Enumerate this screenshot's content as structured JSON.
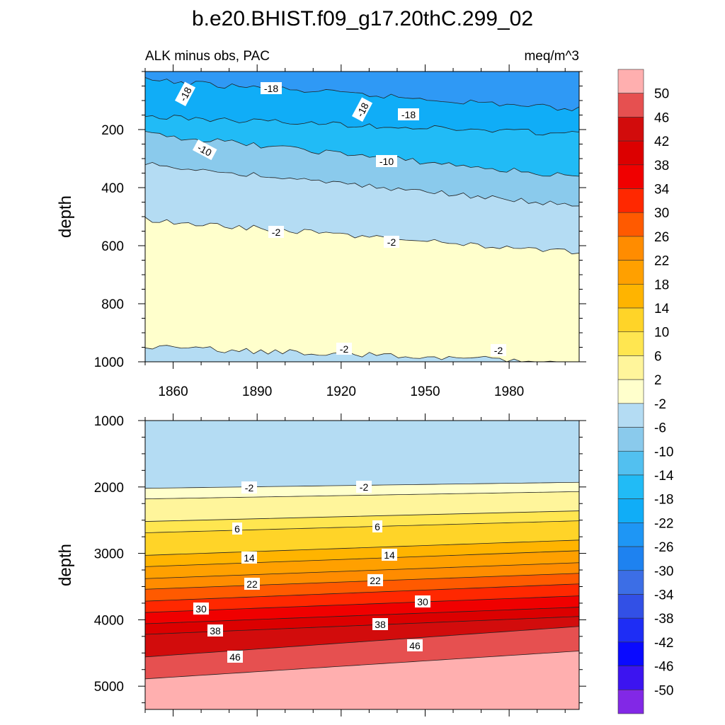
{
  "chart_data": [
    {
      "type": "contour",
      "title": "b.e20.BHIST.f09_g17.20thC.299_02",
      "subtitle_left": "ALK minus obs, PAC",
      "subtitle_right": "meq/m^3",
      "xlabel": "",
      "ylabel": "depth",
      "xlim": [
        1850,
        2005
      ],
      "ylim": [
        1000,
        0
      ],
      "x_ticks": [
        1860,
        1890,
        1920,
        1950,
        1980
      ],
      "y_ticks": [
        200,
        400,
        600,
        800,
        1000
      ],
      "contour_labels": [
        "-18",
        "-18",
        "-18",
        "-18",
        "-10",
        "-10",
        "-2",
        "-2",
        "-2",
        "-2"
      ],
      "zones": [
        {
          "level": "-22",
          "color": "#2f99f5",
          "depth_1850": 0,
          "depth_2005": 0
        },
        {
          "level": "-18",
          "color": "#10adf7",
          "depth_1850": 30,
          "depth_2005": 130
        },
        {
          "level": "-14",
          "color": "#21bbf6",
          "depth_1850": 155,
          "depth_2005": 215
        },
        {
          "level": "-10",
          "color": "#8acaec",
          "depth_1850": 215,
          "depth_2005": 365
        },
        {
          "level": "-6",
          "color": "#b4dcf3",
          "depth_1850": 320,
          "depth_2005": 465
        },
        {
          "level": "-2",
          "color": "#ffffcc",
          "depth_1850": 510,
          "depth_2005": 625
        },
        {
          "level": "-6",
          "color": "#b4dcf3",
          "depth_1850": 950,
          "depth_2005": 1001
        }
      ]
    },
    {
      "type": "contour",
      "title": "",
      "xlabel": "",
      "ylabel": "depth",
      "xlim": [
        1850,
        2005
      ],
      "ylim": [
        5350,
        1000
      ],
      "x_ticks": [
        1860,
        1890,
        1920,
        1950,
        1980
      ],
      "y_ticks": [
        1000,
        2000,
        3000,
        4000,
        5000
      ],
      "contour_labels": [
        "-2",
        "-2",
        "6",
        "6",
        "14",
        "14",
        "22",
        "22",
        "30",
        "30",
        "38",
        "38",
        "46",
        "46"
      ],
      "zones": [
        {
          "level": "-6",
          "color": "#b4dcf3",
          "depth_1850": 1000,
          "depth_2005": 1000
        },
        {
          "level": "-2",
          "color": "#ffffcc",
          "depth_1850": 2020,
          "depth_2005": 1930
        },
        {
          "level": "2",
          "color": "#fff59b",
          "depth_1850": 2180,
          "depth_2005": 2070
        },
        {
          "level": "6",
          "color": "#ffe650",
          "depth_1850": 2520,
          "depth_2005": 2360
        },
        {
          "level": "10",
          "color": "#ffd428",
          "depth_1850": 2690,
          "depth_2005": 2510
        },
        {
          "level": "14",
          "color": "#ffb400",
          "depth_1850": 3030,
          "depth_2005": 2800
        },
        {
          "level": "18",
          "color": "#ffa000",
          "depth_1850": 3200,
          "depth_2005": 2960
        },
        {
          "level": "22",
          "color": "#ff8c00",
          "depth_1850": 3380,
          "depth_2005": 3140
        },
        {
          "level": "26",
          "color": "#ff5a00",
          "depth_1850": 3540,
          "depth_2005": 3300
        },
        {
          "level": "30",
          "color": "#ff2800",
          "depth_1850": 3720,
          "depth_2005": 3460
        },
        {
          "level": "34",
          "color": "#f00000",
          "depth_1850": 3890,
          "depth_2005": 3640
        },
        {
          "level": "38",
          "color": "#dc0000",
          "depth_1850": 4060,
          "depth_2005": 3810
        },
        {
          "level": "42",
          "color": "#d20c0c",
          "depth_1850": 4220,
          "depth_2005": 3950
        },
        {
          "level": "46",
          "color": "#e65050",
          "depth_1850": 4560,
          "depth_2005": 4100
        },
        {
          "level": "50",
          "color": "#ffafaf",
          "depth_1850": 4890,
          "depth_2005": 4470
        }
      ]
    }
  ],
  "colorbar": {
    "labels": [
      "50",
      "46",
      "42",
      "38",
      "34",
      "30",
      "26",
      "22",
      "18",
      "14",
      "10",
      "6",
      "2",
      "-2",
      "-6",
      "-10",
      "-14",
      "-18",
      "-22",
      "-26",
      "-30",
      "-34",
      "-38",
      "-42",
      "-46",
      "-50"
    ],
    "colors": [
      "#ffafaf",
      "#e65050",
      "#d20c0c",
      "#dc0000",
      "#f00000",
      "#ff2800",
      "#ff5a00",
      "#ff8c00",
      "#ffa000",
      "#ffb400",
      "#ffd428",
      "#ffe650",
      "#fff59b",
      "#ffffcc",
      "#b4dcf3",
      "#8acaec",
      "#52c0f0",
      "#21bbf6",
      "#10adf7",
      "#1e96f5",
      "#1e82f0",
      "#3c6ee6",
      "#3250e6",
      "#1e2df5",
      "#0a0aff",
      "#3c14f0",
      "#8228e6"
    ]
  }
}
